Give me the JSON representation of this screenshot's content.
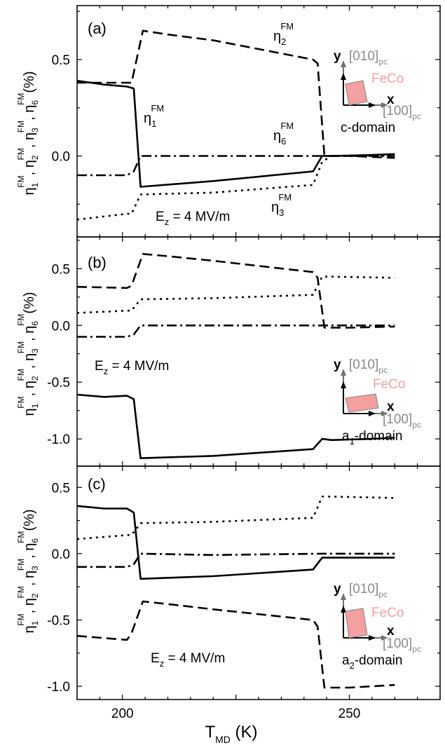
{
  "chart_data": [
    {
      "type": "line",
      "panel_label": "(a)",
      "ylim": [
        -0.42,
        0.78
      ],
      "yticks": [
        -0.0,
        0.5
      ],
      "ytick_labels": [
        "0.0",
        "0.5"
      ],
      "field_label": "E",
      "field_sub": "z",
      "field_value": " = 4 MV/m",
      "series": [
        {
          "key": "eta1",
          "style": "solid",
          "x": [
            190,
            196,
            201,
            202.5,
            204,
            220,
            242,
            244,
            246,
            255,
            260
          ],
          "y": [
            0.39,
            0.37,
            0.36,
            0.35,
            -0.16,
            -0.13,
            -0.08,
            0.0,
            0.0,
            0.005,
            0.01
          ]
        },
        {
          "key": "eta2",
          "style": "dashed",
          "x": [
            190,
            201,
            202,
            204.5,
            210,
            220,
            242,
            243,
            244.5,
            250,
            260
          ],
          "y": [
            0.38,
            0.38,
            0.38,
            0.65,
            0.63,
            0.6,
            0.5,
            0.48,
            0.0,
            0.0,
            -0.01
          ]
        },
        {
          "key": "eta3",
          "style": "dotted",
          "x": [
            190,
            201,
            202,
            204,
            220,
            242,
            244,
            246,
            260
          ],
          "y": [
            -0.33,
            -0.3,
            -0.3,
            -0.2,
            -0.19,
            -0.15,
            -0.03,
            0.0,
            0.0
          ]
        },
        {
          "key": "eta6",
          "style": "dashdot",
          "x": [
            190,
            201,
            202.5,
            204,
            220,
            244,
            260
          ],
          "y": [
            -0.1,
            -0.1,
            -0.08,
            0.0,
            0.0,
            0.0,
            0.0
          ]
        }
      ],
      "annotations": [
        {
          "sym": "η",
          "sub": "2",
          "sup": "FM"
        },
        {
          "sym": "η",
          "sub": "1",
          "sup": "FM"
        },
        {
          "sym": "η",
          "sub": "6",
          "sup": "FM"
        },
        {
          "sym": "η",
          "sub": "3",
          "sup": "FM"
        }
      ],
      "inset": {
        "y": "y",
        "x": "x",
        "axis_y": "[010]",
        "axis_x": "[100]",
        "pc": "pc",
        "material": "FeCo",
        "domain_main": "c-domain",
        "domain_sub": ""
      }
    },
    {
      "type": "line",
      "panel_label": "(b)",
      "ylim": [
        -1.24,
        0.78
      ],
      "yticks": [
        -1.0,
        -0.5,
        -0.0,
        0.5
      ],
      "ytick_labels": [
        "-1.0",
        "-0.5",
        "0.0",
        "0.5"
      ],
      "field_label": "E",
      "field_sub": "z",
      "field_value": " = 4 MV/m",
      "series": [
        {
          "key": "eta1",
          "style": "solid",
          "x": [
            190,
            196,
            201,
            202.5,
            204,
            220,
            242,
            244,
            246,
            255,
            260
          ],
          "y": [
            -0.61,
            -0.63,
            -0.62,
            -0.65,
            -1.17,
            -1.15,
            -1.09,
            -1.0,
            -1.01,
            -1.0,
            -0.99
          ]
        },
        {
          "key": "eta2",
          "style": "dashed",
          "x": [
            190,
            201,
            202,
            204.5,
            210,
            220,
            242,
            243,
            244.5,
            250,
            260
          ],
          "y": [
            0.34,
            0.33,
            0.35,
            0.63,
            0.61,
            0.57,
            0.47,
            0.42,
            -0.02,
            -0.02,
            -0.01
          ]
        },
        {
          "key": "eta3",
          "style": "dotted",
          "x": [
            190,
            201,
            202,
            204,
            220,
            242,
            244,
            246,
            260
          ],
          "y": [
            0.11,
            0.13,
            0.13,
            0.23,
            0.24,
            0.27,
            0.43,
            0.43,
            0.42
          ]
        },
        {
          "key": "eta6",
          "style": "dashdot",
          "x": [
            190,
            201,
            202.5,
            204,
            220,
            244,
            260
          ],
          "y": [
            -0.1,
            -0.1,
            -0.08,
            0.0,
            0.0,
            0.0,
            0.0
          ]
        }
      ],
      "annotations": [],
      "inset": {
        "y": "y",
        "x": "x",
        "axis_y": "[010]",
        "axis_x": "[100]",
        "pc": "pc",
        "material": "FeCo",
        "domain_main": "a",
        "domain_sub": "1",
        "domain_rest": "-domain"
      }
    },
    {
      "type": "line",
      "panel_label": "(c)",
      "ylim": [
        -1.1,
        0.66
      ],
      "yticks": [
        -1.0,
        -0.5,
        -0.0,
        0.5
      ],
      "ytick_labels": [
        "-1.0",
        "-0.5",
        "0.0",
        "0.5"
      ],
      "xlim": [
        190,
        270
      ],
      "xticks": [
        200,
        250
      ],
      "xtick_labels": [
        "200",
        "250"
      ],
      "field_label": "E",
      "field_sub": "z",
      "field_value": " = 4 MV/m",
      "series": [
        {
          "key": "eta1",
          "style": "solid",
          "x": [
            190,
            196,
            201,
            202.5,
            204,
            220,
            242,
            244,
            246,
            255,
            260
          ],
          "y": [
            0.36,
            0.34,
            0.34,
            0.31,
            -0.19,
            -0.17,
            -0.12,
            -0.03,
            -0.03,
            -0.03,
            -0.03
          ]
        },
        {
          "key": "eta2",
          "style": "dashed",
          "x": [
            190,
            201,
            202,
            204.5,
            210,
            220,
            242,
            243,
            244.5,
            250,
            260
          ],
          "y": [
            -0.62,
            -0.65,
            -0.6,
            -0.36,
            -0.38,
            -0.42,
            -0.5,
            -0.55,
            -1.01,
            -1.01,
            -0.99
          ]
        },
        {
          "key": "eta3",
          "style": "dotted",
          "x": [
            190,
            201,
            202,
            204,
            220,
            242,
            244,
            246,
            260
          ],
          "y": [
            0.11,
            0.14,
            0.14,
            0.23,
            0.24,
            0.27,
            0.43,
            0.43,
            0.42
          ]
        },
        {
          "key": "eta6",
          "style": "dashdot",
          "x": [
            190,
            201,
            202.5,
            204,
            220,
            244,
            260
          ],
          "y": [
            -0.1,
            -0.1,
            -0.08,
            0.0,
            -0.01,
            0.0,
            0.0
          ]
        }
      ],
      "annotations": [],
      "inset": {
        "y": "y",
        "x": "x",
        "axis_y": "[010]",
        "axis_x": "[100]",
        "pc": "pc",
        "material": "FeCo",
        "domain_main": "a",
        "domain_sub": "2",
        "domain_rest": "-domain"
      }
    }
  ],
  "ylabel": {
    "sym": "η",
    "parts": [
      {
        "sub": "1",
        "sup": "FM"
      },
      {
        "sub": "2",
        "sup": "FM"
      },
      {
        "sub": "3",
        "sup": "FM"
      },
      {
        "sub": "6",
        "sup": "FM"
      }
    ],
    "unit": "(%)"
  },
  "xlabel": {
    "main": "T",
    "sub": "MD",
    "unit": " (K)"
  },
  "colors": {
    "line": "#000000",
    "inset_axis": "#707070",
    "inset_text": "#8a8a8a",
    "film": "#f4a0a0",
    "film_edge": "#808080"
  }
}
